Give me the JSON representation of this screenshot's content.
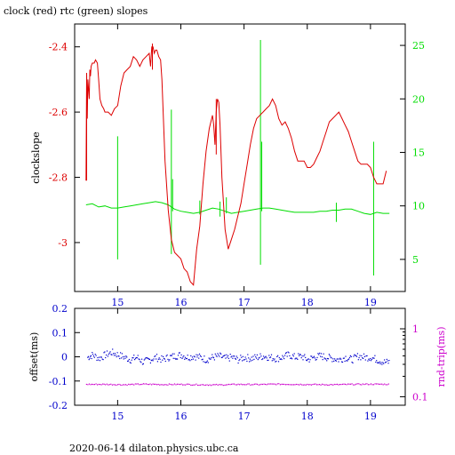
{
  "title": "clock (red) rtc (green) slopes",
  "footer": "2020-06-14  dilaton.physics.ubc.ca",
  "colors": {
    "clock": "#dd0000",
    "rtc": "#00dd00",
    "offset": "#0000cc",
    "rtt": "#cc00cc",
    "axis": "#000000"
  },
  "chart_data": [
    {
      "type": "line",
      "ylabel": "clockslope",
      "y2label": "",
      "xlim": [
        14.32,
        19.55
      ],
      "ylim": [
        -3.15,
        -2.33
      ],
      "y2lim": [
        2,
        27
      ],
      "x_ticks": [
        15,
        16,
        17,
        18,
        19
      ],
      "y_ticks": [
        -3,
        -2.8,
        -2.6,
        -2.4
      ],
      "y_tick_labels": [
        "-3",
        "-2.8",
        "-2.6",
        "-2.4"
      ],
      "y2_ticks": [
        5,
        10,
        15,
        20,
        25
      ],
      "y2_tick_labels": [
        "5",
        "10",
        "15",
        "20",
        "25"
      ],
      "series": [
        {
          "name": "clock",
          "axis": "left",
          "x": [
            14.5,
            14.51,
            14.52,
            14.53,
            14.55,
            14.56,
            14.57,
            14.58,
            14.6,
            14.63,
            14.65,
            14.68,
            14.7,
            14.72,
            14.75,
            14.78,
            14.8,
            14.85,
            14.9,
            14.95,
            15.0,
            15.05,
            15.1,
            15.15,
            15.2,
            15.25,
            15.3,
            15.35,
            15.4,
            15.45,
            15.5,
            15.52,
            15.54,
            15.56,
            15.58,
            15.6,
            15.62,
            15.65,
            15.68,
            15.7,
            15.72,
            15.75,
            15.8,
            15.85,
            15.9,
            15.95,
            16.0,
            16.05,
            16.1,
            16.15,
            16.2,
            16.25,
            16.3,
            16.35,
            16.4,
            16.45,
            16.5,
            16.52,
            16.54,
            16.56,
            16.58,
            16.6,
            16.62,
            16.65,
            16.7,
            16.75,
            16.8,
            16.85,
            16.9,
            16.95,
            17.0,
            17.05,
            17.1,
            17.15,
            17.2,
            17.25,
            17.3,
            17.35,
            17.4,
            17.45,
            17.5,
            17.55,
            17.6,
            17.65,
            17.7,
            17.75,
            17.8,
            17.85,
            17.9,
            17.95,
            18.0,
            18.05,
            18.1,
            18.15,
            18.2,
            18.25,
            18.3,
            18.35,
            18.4,
            18.45,
            18.5,
            18.55,
            18.6,
            18.65,
            18.7,
            18.75,
            18.8,
            18.85,
            18.9,
            18.95,
            19.0,
            19.05,
            19.1,
            19.15,
            19.2,
            19.25
          ],
          "y": [
            -2.81,
            -2.48,
            -2.62,
            -2.5,
            -2.56,
            -2.47,
            -2.49,
            -2.46,
            -2.45,
            -2.45,
            -2.44,
            -2.45,
            -2.5,
            -2.56,
            -2.58,
            -2.59,
            -2.6,
            -2.6,
            -2.61,
            -2.59,
            -2.58,
            -2.52,
            -2.48,
            -2.47,
            -2.46,
            -2.43,
            -2.44,
            -2.46,
            -2.44,
            -2.43,
            -2.42,
            -2.46,
            -2.4,
            -2.4,
            -2.42,
            -2.41,
            -2.41,
            -2.43,
            -2.44,
            -2.5,
            -2.6,
            -2.75,
            -2.9,
            -2.99,
            -3.03,
            -3.04,
            -3.05,
            -3.08,
            -3.09,
            -3.12,
            -3.13,
            -3.02,
            -2.95,
            -2.82,
            -2.72,
            -2.65,
            -2.61,
            -2.64,
            -2.7,
            -2.6,
            -2.56,
            -2.57,
            -2.64,
            -2.8,
            -2.96,
            -3.02,
            -2.99,
            -2.96,
            -2.92,
            -2.88,
            -2.82,
            -2.76,
            -2.7,
            -2.65,
            -2.62,
            -2.61,
            -2.6,
            -2.59,
            -2.58,
            -2.56,
            -2.58,
            -2.62,
            -2.64,
            -2.63,
            -2.65,
            -2.68,
            -2.72,
            -2.75,
            -2.75,
            -2.75,
            -2.77,
            -2.77,
            -2.76,
            -2.74,
            -2.72,
            -2.69,
            -2.66,
            -2.63,
            -2.62,
            -2.61,
            -2.6,
            -2.62,
            -2.64,
            -2.66,
            -2.69,
            -2.72,
            -2.75,
            -2.76,
            -2.76,
            -2.76,
            -2.77,
            -2.8,
            -2.82,
            -2.82,
            -2.82,
            -2.78
          ]
        },
        {
          "name": "rtc",
          "axis": "right",
          "x": [
            14.5,
            14.6,
            14.7,
            14.8,
            14.9,
            15.0,
            15.1,
            15.2,
            15.3,
            15.4,
            15.5,
            15.6,
            15.7,
            15.8,
            15.9,
            16.0,
            16.1,
            16.2,
            16.3,
            16.4,
            16.5,
            16.6,
            16.7,
            16.8,
            16.9,
            17.0,
            17.1,
            17.2,
            17.3,
            17.4,
            17.5,
            17.6,
            17.7,
            17.8,
            17.9,
            18.0,
            18.1,
            18.2,
            18.3,
            18.4,
            18.5,
            18.6,
            18.7,
            18.8,
            18.9,
            19.0,
            19.1,
            19.2,
            19.3
          ],
          "y": [
            10.1,
            10.2,
            9.9,
            10.0,
            9.8,
            9.8,
            9.9,
            10.0,
            10.1,
            10.2,
            10.3,
            10.4,
            10.3,
            10.1,
            9.7,
            9.5,
            9.4,
            9.3,
            9.4,
            9.6,
            9.8,
            9.7,
            9.5,
            9.3,
            9.4,
            9.5,
            9.6,
            9.7,
            9.8,
            9.8,
            9.7,
            9.6,
            9.5,
            9.4,
            9.4,
            9.4,
            9.4,
            9.5,
            9.5,
            9.6,
            9.6,
            9.7,
            9.7,
            9.5,
            9.3,
            9.2,
            9.4,
            9.3,
            9.3
          ]
        }
      ],
      "rtc_spikes": [
        {
          "x": 15.0,
          "lo": 5.0,
          "hi": 16.5
        },
        {
          "x": 15.85,
          "lo": 5.5,
          "hi": 19.0
        },
        {
          "x": 15.87,
          "lo": 9.5,
          "hi": 12.5
        },
        {
          "x": 16.3,
          "lo": 9.2,
          "hi": 10.5
        },
        {
          "x": 16.62,
          "lo": 9.0,
          "hi": 10.4
        },
        {
          "x": 16.72,
          "lo": 9.3,
          "hi": 10.8
        },
        {
          "x": 17.26,
          "lo": 4.5,
          "hi": 25.5
        },
        {
          "x": 17.28,
          "lo": 9.5,
          "hi": 16.0
        },
        {
          "x": 18.46,
          "lo": 8.5,
          "hi": 10.3
        },
        {
          "x": 19.05,
          "lo": 3.5,
          "hi": 16.0
        }
      ],
      "clock_spikes": [
        {
          "x": 14.51,
          "lo": -2.81,
          "hi": -2.48
        },
        {
          "x": 15.55,
          "lo": -2.47,
          "hi": -2.39
        },
        {
          "x": 16.56,
          "lo": -2.73,
          "hi": -2.56
        }
      ]
    },
    {
      "type": "scatter",
      "ylabel": "offset(ms)",
      "y2label": "rnd-trip(ms)",
      "xlim": [
        14.32,
        19.55
      ],
      "ylim": [
        -0.2,
        0.2
      ],
      "x_ticks": [
        15,
        16,
        17,
        18,
        19
      ],
      "y_ticks": [
        -0.2,
        -0.1,
        0,
        0.1,
        0.2
      ],
      "y_tick_labels": [
        "-0.2",
        "-0.1",
        "0",
        "0.1",
        "0.2"
      ],
      "y2_scale": "log",
      "y2lim": [
        0.075,
        2.0
      ],
      "y2_ticks": [
        0.1,
        1
      ],
      "y2_tick_labels": [
        "0.1",
        "1"
      ],
      "series": [
        {
          "name": "offset",
          "axis": "left",
          "x": [
            14.52,
            14.6,
            14.7,
            14.8,
            14.9,
            15.0,
            15.1,
            15.2,
            15.3,
            15.4,
            15.5,
            15.6,
            15.7,
            15.8,
            15.9,
            16.0,
            16.1,
            16.2,
            16.3,
            16.4,
            16.5,
            16.6,
            16.7,
            16.8,
            16.9,
            17.0,
            17.1,
            17.2,
            17.3,
            17.4,
            17.5,
            17.6,
            17.7,
            17.8,
            17.9,
            18.0,
            18.1,
            18.2,
            18.3,
            18.4,
            18.5,
            18.6,
            18.7,
            18.8,
            18.9,
            19.0,
            19.1,
            19.2,
            19.3
          ],
          "y": [
            0.0,
            0.01,
            -0.005,
            0.01,
            0.02,
            0.01,
            0.0,
            -0.01,
            0.0,
            -0.02,
            -0.01,
            0.0,
            -0.01,
            0.0,
            0.005,
            0.01,
            0.0,
            0.005,
            0.0,
            -0.01,
            0.0,
            0.005,
            -0.005,
            0.0,
            -0.01,
            0.0,
            -0.005,
            0.0,
            0.005,
            0.0,
            -0.005,
            0.0,
            0.01,
            0.0,
            0.005,
            -0.01,
            0.0,
            0.005,
            0.0,
            -0.005,
            -0.01,
            0.0,
            -0.01,
            0.005,
            0.0,
            0.0,
            -0.01,
            -0.02,
            -0.02
          ]
        },
        {
          "name": "rnd-trip",
          "axis": "right",
          "x": [
            14.5,
            14.8,
            15.1,
            15.4,
            15.7,
            16.0,
            16.3,
            16.6,
            16.9,
            17.2,
            17.5,
            17.8,
            18.1,
            18.4,
            18.7,
            19.0,
            19.3
          ],
          "y": [
            0.155,
            0.155,
            0.153,
            0.156,
            0.154,
            0.155,
            0.153,
            0.152,
            0.155,
            0.154,
            0.156,
            0.155,
            0.154,
            0.153,
            0.155,
            0.156,
            0.155
          ]
        }
      ]
    }
  ]
}
